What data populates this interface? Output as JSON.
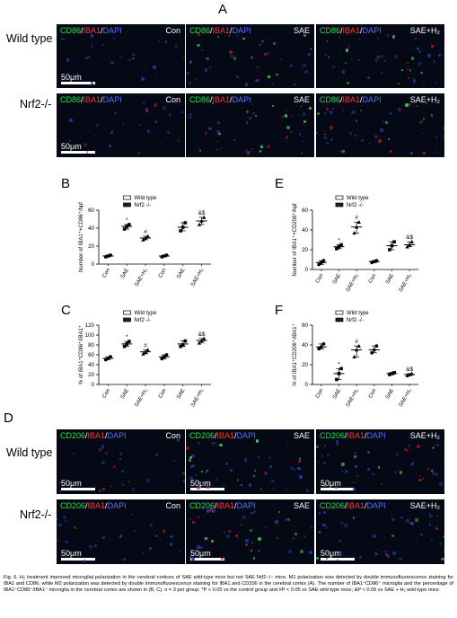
{
  "panels": {
    "A": "A",
    "B": "B",
    "C": "C",
    "D": "D",
    "E": "E",
    "F": "F"
  },
  "rows": {
    "wild_type": "Wild type",
    "knockout": "Nrf2-/-"
  },
  "micrographs_A": [
    {
      "stain1": "CD86",
      "stain2": "IBA1",
      "stain3": "DAPI",
      "cond": "Con",
      "scale": "50μm"
    },
    {
      "stain1": "CD86",
      "stain2": "IBA1",
      "stain3": "DAPI",
      "cond": "SAE",
      "scale": ""
    },
    {
      "stain1": "CD86",
      "stain2": "IBA1",
      "stain3": "DAPI",
      "cond": "SAE+H₂",
      "scale": ""
    },
    {
      "stain1": "CD86",
      "stain2": "IBA1",
      "stain3": "DAPI",
      "cond": "Con",
      "scale": "50μm"
    },
    {
      "stain1": "CD86",
      "stain2": "IBA1",
      "stain3": "DAPI",
      "cond": "SAE",
      "scale": ""
    },
    {
      "stain1": "CD86",
      "stain2": "IBA1",
      "stain3": "DAPI",
      "cond": "SAE+H₂",
      "scale": ""
    }
  ],
  "micrographs_D": [
    {
      "stain1": "CD206",
      "stain2": "IBA1",
      "stain3": "DAPI",
      "cond": "Con",
      "scale": "50μm"
    },
    {
      "stain1": "CD206",
      "stain2": "IBA1",
      "stain3": "DAPI",
      "cond": "SAE",
      "scale": "50μm"
    },
    {
      "stain1": "CD206",
      "stain2": "IBA1",
      "stain3": "DAPI",
      "cond": "SAE+H₂",
      "scale": "50μm"
    },
    {
      "stain1": "CD206",
      "stain2": "IBA1",
      "stain3": "DAPI",
      "cond": "Con",
      "scale": "50μm"
    },
    {
      "stain1": "CD206",
      "stain2": "IBA1",
      "stain3": "DAPI",
      "cond": "SAE",
      "scale": "50μm"
    },
    {
      "stain1": "CD206",
      "stain2": "IBA1",
      "stain3": "DAPI",
      "cond": "SAE+H₂",
      "scale": "50μm"
    }
  ],
  "chart_data": [
    {
      "id": "B",
      "type": "scatter",
      "ylabel": "Number of IBA1⁺+CD86⁺/hpf",
      "ylim": [
        0,
        60
      ],
      "yticks": [
        0,
        20,
        40,
        60
      ],
      "categories": [
        "Con",
        "SAE",
        "SAE+H₂",
        "Con",
        "SAE",
        "SAE+H₂"
      ],
      "legend": [
        "Wild type",
        "Nrf2 -/-"
      ],
      "means": [
        9,
        42,
        29,
        9,
        41,
        48
      ],
      "points": [
        [
          8,
          9,
          10
        ],
        [
          39,
          42,
          44
        ],
        [
          27,
          29,
          31
        ],
        [
          8,
          9,
          10
        ],
        [
          37,
          41,
          46
        ],
        [
          44,
          48,
          52
        ]
      ],
      "marks": [
        "",
        "*",
        "#",
        "",
        "",
        "&$"
      ]
    },
    {
      "id": "C",
      "type": "scatter",
      "ylabel": "% of IBA1⁺CD86⁺/IBA1⁺",
      "ylim": [
        0,
        120
      ],
      "yticks": [
        0,
        20,
        40,
        60,
        80,
        100,
        120
      ],
      "categories": [
        "Con",
        "SAE",
        "SAE+H₂",
        "Con",
        "SAE",
        "SAE+H₂"
      ],
      "legend": [
        "Wild type",
        "Nrf2 -/-"
      ],
      "means": [
        53,
        82,
        66,
        56,
        82,
        89
      ],
      "points": [
        [
          50,
          53,
          56
        ],
        [
          77,
          82,
          87
        ],
        [
          62,
          66,
          70
        ],
        [
          52,
          56,
          60
        ],
        [
          77,
          80,
          88
        ],
        [
          84,
          89,
          93
        ]
      ],
      "marks": [
        "",
        "*",
        "#",
        "",
        "",
        "&$"
      ]
    },
    {
      "id": "E",
      "type": "scatter",
      "ylabel": "Number of IBA1⁺+CD206⁺/hpf",
      "ylim": [
        0,
        60
      ],
      "yticks": [
        0,
        20,
        40,
        60
      ],
      "categories": [
        "Con",
        "SAE",
        "SAE+H₂",
        "Con",
        "SAE",
        "SAE+H₂"
      ],
      "legend": [
        "Wild type",
        "Nrf2 -/-"
      ],
      "means": [
        7,
        23,
        43,
        8,
        24,
        25
      ],
      "points": [
        [
          5,
          7,
          9
        ],
        [
          21,
          23,
          25
        ],
        [
          37,
          43,
          48
        ],
        [
          7,
          8,
          9
        ],
        [
          20,
          24,
          28
        ],
        [
          23,
          25,
          28
        ]
      ],
      "marks": [
        "",
        "*",
        "#",
        "",
        "",
        "&$"
      ]
    },
    {
      "id": "F",
      "type": "scatter",
      "ylabel": "% of IBA1⁺CD206⁺/IBA1⁺",
      "ylim": [
        0,
        60
      ],
      "yticks": [
        0,
        20,
        40,
        60
      ],
      "categories": [
        "Con",
        "SAE",
        "SAE+H₂",
        "Con",
        "SAE",
        "SAE+H₂"
      ],
      "legend": [
        "Wild type",
        "Nrf2 -/-"
      ],
      "means": [
        38,
        11,
        35,
        35,
        11,
        10
      ],
      "points": [
        [
          36,
          38,
          41
        ],
        [
          5,
          11,
          16
        ],
        [
          28,
          35,
          39
        ],
        [
          32,
          35,
          39
        ],
        [
          10,
          11,
          12
        ],
        [
          9,
          10,
          11
        ]
      ],
      "marks": [
        "",
        "*",
        "#",
        "",
        "",
        "&$"
      ]
    }
  ],
  "caption": "Fig. 6. H₂ treatment improved microglial polarization in the cerebral cortices of SAE wild-type mice but not SAE Nrf2−/− mice. M1 polarization was detected by double immunofluorescence staining for IBA1 and CD86, while M2 polarization was detected by double immunofluorescence staining for IBA1 and CD206 in the cerebral cortex (A). The number of IBA1⁺CD86⁺ microglia and the percentage of IBA1⁺CD86⁺/IBA1⁺ microglia in the cerebral cortex are shown in (B, C). n = 3 per group. *P < 0.05 vs the control group and #P < 0.05 vs SAE wild-type mice; &P < 0.05 vs SAE + H₂ wild-type mice."
}
